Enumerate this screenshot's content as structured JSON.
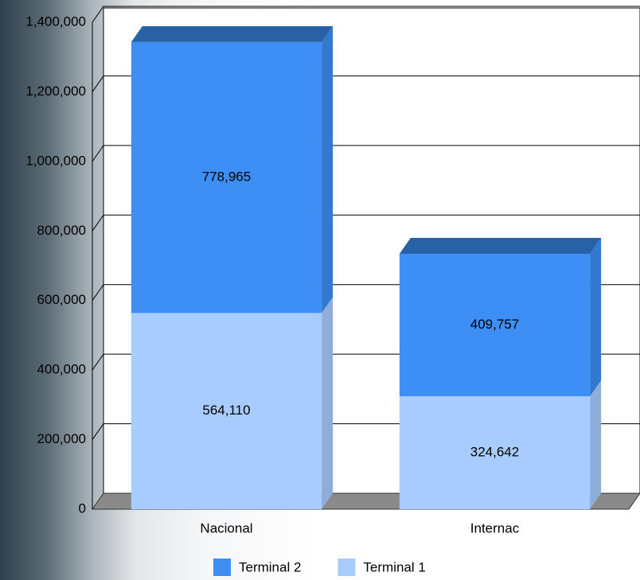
{
  "chart_data": {
    "type": "bar",
    "stacked": true,
    "categories": [
      "Nacional",
      "Internac"
    ],
    "series": [
      {
        "name": "Terminal 2",
        "color": "#3d8ef5",
        "values": [
          778965,
          409757
        ],
        "value_labels": [
          "778,965",
          "409,757"
        ]
      },
      {
        "name": "Terminal 1",
        "color": "#a8ccff",
        "values": [
          564110,
          324642
        ],
        "value_labels": [
          "564,110",
          "324,642"
        ]
      }
    ],
    "ylim": [
      0,
      1400000
    ],
    "yticks": [
      0,
      {
        "value": 200000,
        "label": "200,000"
      },
      {
        "value": 400000,
        "label": "400,000"
      },
      {
        "value": 600000,
        "label": "600,000"
      },
      {
        "value": 800000,
        "label": "800,000"
      },
      {
        "value": 1000000,
        "label": "1,000,000"
      },
      {
        "value": 1200000,
        "label": "1,200,000"
      },
      {
        "value": 1400000,
        "label": "1,400,000"
      }
    ],
    "grid": true,
    "legend": "bottom"
  }
}
